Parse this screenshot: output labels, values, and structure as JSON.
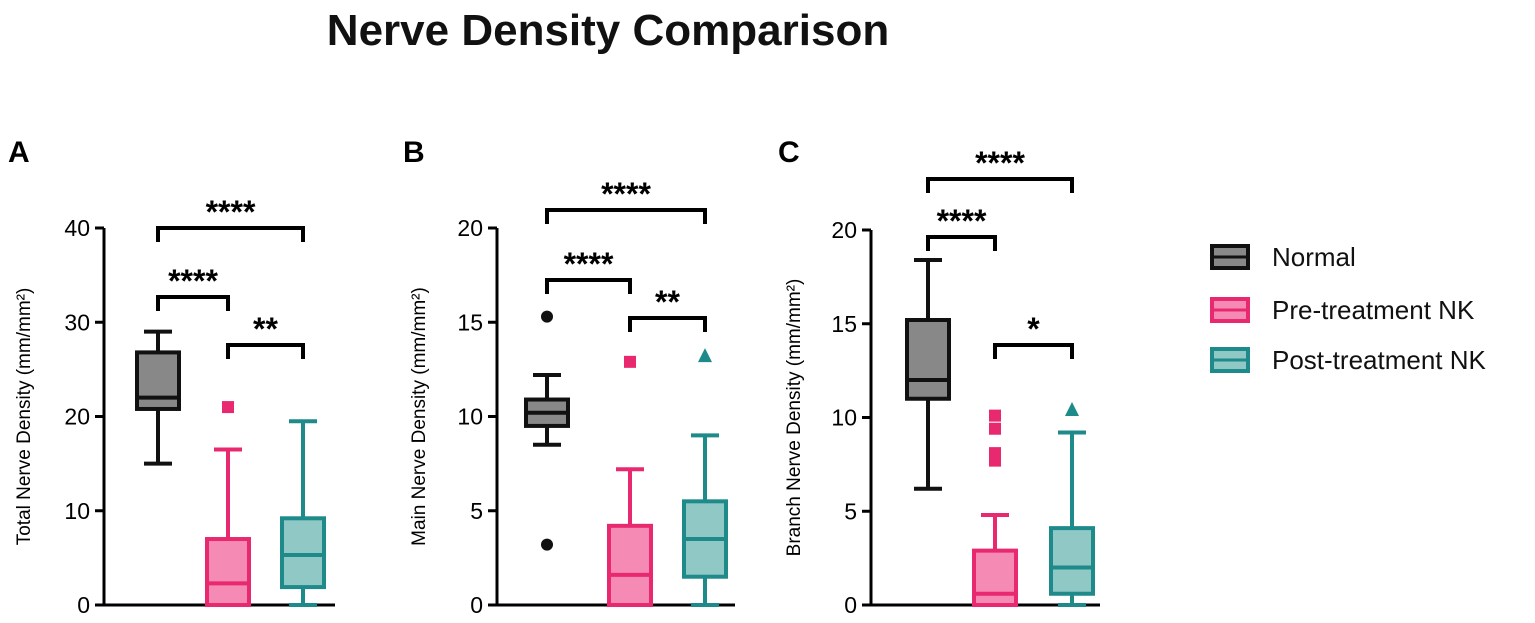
{
  "title": "Nerve Density Comparison",
  "colors": {
    "normal_stroke": "#111111",
    "normal_fill": "#888888",
    "pre_stroke": "#e8296f",
    "pre_fill": "#f58ab4",
    "post_stroke": "#1e8a8a",
    "post_fill": "#8fc8c4"
  },
  "legend": [
    {
      "label": "Normal",
      "group": "normal"
    },
    {
      "label": "Pre-treatment NK",
      "group": "pre"
    },
    {
      "label": "Post-treatment NK",
      "group": "post"
    }
  ],
  "chart_data": [
    {
      "type": "box",
      "panel": "A",
      "ylabel": "Total Nerve Density (mm/mm²)",
      "ylim": [
        0,
        40
      ],
      "yticks": [
        0,
        10,
        20,
        30,
        40
      ],
      "groups": [
        {
          "name": "Normal",
          "whisker_low": 15,
          "q1": 20.8,
          "median": 22,
          "q3": 26.8,
          "whisker_high": 29,
          "outliers": []
        },
        {
          "name": "Pre-treatment NK",
          "whisker_low": 0,
          "q1": 0,
          "median": 2.3,
          "q3": 7,
          "whisker_high": 16.5,
          "outliers": [
            21
          ]
        },
        {
          "name": "Post-treatment NK",
          "whisker_low": 0,
          "q1": 1.9,
          "median": 5.3,
          "q3": 9.2,
          "whisker_high": 19.5,
          "outliers": []
        }
      ],
      "significance": [
        {
          "from": 0,
          "to": 2,
          "label": "****",
          "level": 0
        },
        {
          "from": 0,
          "to": 1,
          "label": "****",
          "level": 1
        },
        {
          "from": 1,
          "to": 2,
          "label": "**",
          "level": 2
        }
      ]
    },
    {
      "type": "box",
      "panel": "B",
      "ylabel": "Main Nerve Density (mm/mm²)",
      "ylim": [
        0,
        20
      ],
      "yticks": [
        0,
        5,
        10,
        15,
        20
      ],
      "groups": [
        {
          "name": "Normal",
          "whisker_low": 8.5,
          "q1": 9.5,
          "median": 10.2,
          "q3": 10.9,
          "whisker_high": 12.2,
          "outliers": [
            15.3,
            3.2
          ]
        },
        {
          "name": "Pre-treatment NK",
          "whisker_low": 0,
          "q1": 0,
          "median": 1.6,
          "q3": 4.2,
          "whisker_high": 7.2,
          "outliers": [
            12.9
          ]
        },
        {
          "name": "Post-treatment NK",
          "whisker_low": 0,
          "q1": 1.5,
          "median": 3.5,
          "q3": 5.5,
          "whisker_high": 9,
          "outliers": [
            13.2
          ]
        }
      ],
      "significance": [
        {
          "from": 0,
          "to": 2,
          "label": "****",
          "level": 0
        },
        {
          "from": 0,
          "to": 1,
          "label": "****",
          "level": 1
        },
        {
          "from": 1,
          "to": 2,
          "label": "**",
          "level": 2
        }
      ]
    },
    {
      "type": "box",
      "panel": "C",
      "ylabel": "Branch Nerve Density (mm/mm²)",
      "ylim": [
        0,
        20
      ],
      "yticks": [
        0,
        5,
        10,
        15,
        20
      ],
      "groups": [
        {
          "name": "Normal",
          "whisker_low": 6.2,
          "q1": 11,
          "median": 12,
          "q3": 15.2,
          "whisker_high": 18.4,
          "outliers": []
        },
        {
          "name": "Pre-treatment NK",
          "whisker_low": 0,
          "q1": 0,
          "median": 0.6,
          "q3": 2.9,
          "whisker_high": 4.8,
          "outliers": [
            10.1,
            9.4,
            8.1,
            7.7
          ]
        },
        {
          "name": "Post-treatment NK",
          "whisker_low": 0,
          "q1": 0.6,
          "median": 2,
          "q3": 4.1,
          "whisker_high": 9.2,
          "outliers": [
            10.4
          ]
        }
      ],
      "significance": [
        {
          "from": 0,
          "to": 2,
          "label": "****",
          "level": 0
        },
        {
          "from": 0,
          "to": 1,
          "label": "****",
          "level": 1
        },
        {
          "from": 1,
          "to": 2,
          "label": "*",
          "level": 2
        }
      ]
    }
  ]
}
